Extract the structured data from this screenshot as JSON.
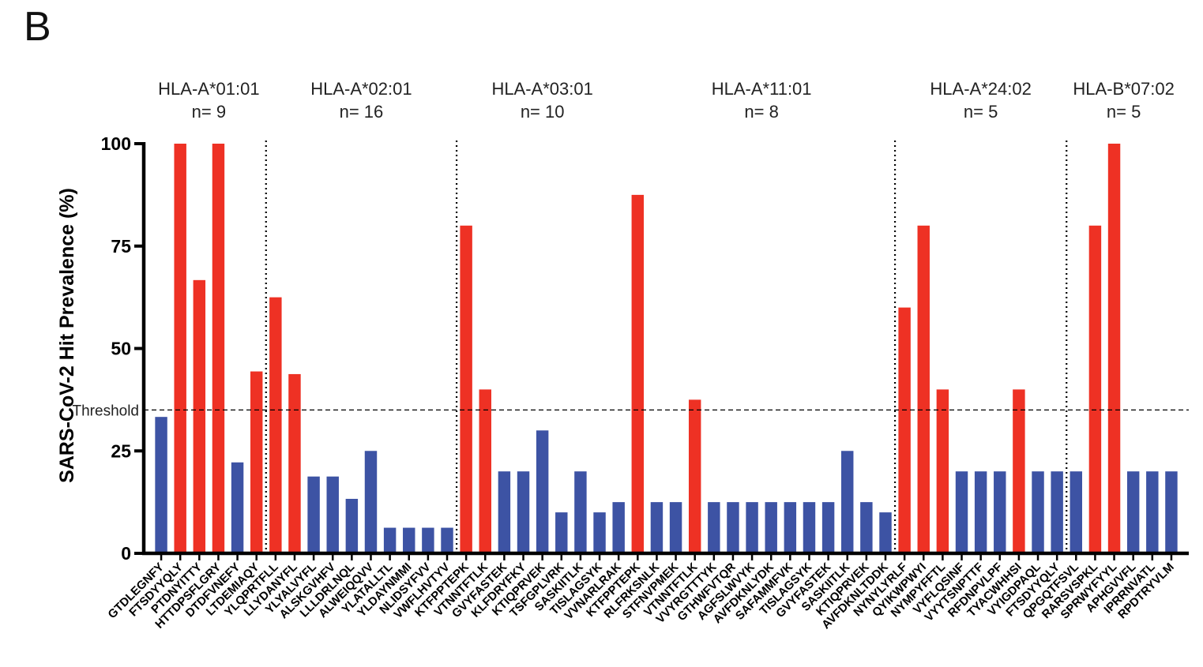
{
  "panel_label": "B",
  "chart_data": {
    "type": "bar",
    "ylabel": "SARS-CoV-2 Hit Prevalence (%)",
    "ylim": [
      0,
      100
    ],
    "yticks": [
      0,
      25,
      50,
      75,
      100
    ],
    "threshold": {
      "label": "Threshold",
      "value": 35
    },
    "colors": {
      "above": "#ee3124",
      "below": "#3d53a4"
    },
    "groups": [
      {
        "name": "HLA-A*01:01",
        "n_label": "n= 9",
        "start": 0,
        "end": 5
      },
      {
        "name": "HLA-A*02:01",
        "n_label": "n= 16",
        "start": 6,
        "end": 15
      },
      {
        "name": "HLA-A*03:01",
        "n_label": "n= 10",
        "start": 16,
        "end": 24
      },
      {
        "name": "HLA-A*11:01",
        "n_label": "n= 8",
        "start": 25,
        "end": 38
      },
      {
        "name": "HLA-A*24:02",
        "n_label": "n= 5",
        "start": 39,
        "end": 47
      },
      {
        "name": "HLA-B*07:02",
        "n_label": "n= 5",
        "start": 48,
        "end": 53
      }
    ],
    "categories": [
      "GTDLEGNFY",
      "FTSDYYQLY",
      "PTDNYITTY",
      "HTTDPSFLGRY",
      "DTDFVNEFY",
      "LTDEMIAQY",
      "YLQPRTFLL",
      "LLYDANYFL",
      "YLYALVYFL",
      "ALSKGVHFV",
      "LLLDRLNQL",
      "ALWEIQQVV",
      "YLATALLTL",
      "YLDAYNMMI",
      "NLIDSYFVV",
      "VWFLHVTYV",
      "KTFPPTEPK",
      "VTNNTFTLK",
      "GVYFASTEK",
      "KLFDRYFKY",
      "KTIQPRVEK",
      "TSFGPLVRK",
      "SASKIITLK",
      "TISLAGSYK",
      "VVNARLRAK",
      "KTFPPTEPK",
      "RLFRKSNLK",
      "STFNVPMEK",
      "VTNNTFTLK",
      "VVYRGTTTYK",
      "GTHWFVTQR",
      "AGFSLWVYK",
      "AVFDKNLYDK",
      "SAFAMMFVK",
      "TISLAGSYK",
      "GVYFASTEK",
      "SASKIITLK",
      "KTIQPRVEK",
      "AVFDKNLTDDK",
      "NYNYLYRLF",
      "QYIKWPWYI",
      "NYMPYFFTL",
      "VYFLQSINF",
      "VYYTSNPTTF",
      "RFDNPVLPF",
      "TYACWHHSI",
      "VYIGDPAQL",
      "FTSDYYQLY",
      "QPGQTFSVL",
      "RARSVSPKL",
      "SPRWYFYYL",
      "APHGVVFL",
      "IPRRNVATL",
      "RPDTRYVLM"
    ],
    "values": [
      33.3,
      100,
      66.7,
      100,
      22.2,
      44.4,
      62.5,
      43.75,
      18.75,
      18.75,
      13.3,
      25,
      6.25,
      6.25,
      6.25,
      6.25,
      80,
      40,
      20,
      20,
      30,
      10,
      20,
      10,
      12.5,
      87.5,
      12.5,
      12.5,
      37.5,
      12.5,
      12.5,
      12.5,
      12.5,
      12.5,
      12.5,
      12.5,
      25,
      12.5,
      10,
      60,
      80,
      40,
      20,
      20,
      20,
      40,
      20,
      20,
      20,
      80,
      100,
      20,
      20,
      20
    ]
  }
}
